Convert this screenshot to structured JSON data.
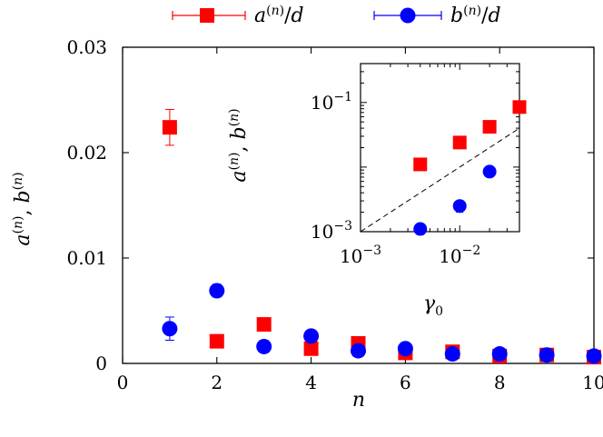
{
  "colors": {
    "series_a": "#ff0000",
    "series_b": "#0000ff",
    "axis": "#000000",
    "fit_line": "#000000"
  },
  "legend": {
    "a_label": "a(n)/d",
    "b_label": "b(n)/d"
  },
  "chart_data": [
    {
      "type": "scatter",
      "title": "",
      "xlabel": "n",
      "ylabel": "a(n), b(n)",
      "xlim": [
        0,
        10
      ],
      "ylim": [
        0,
        0.03
      ],
      "xticks": [
        "0",
        "2",
        "4",
        "6",
        "8",
        "10"
      ],
      "yticks": [
        "0",
        "0.01",
        "0.02",
        "0.03"
      ],
      "grid": false,
      "legend_position": "top",
      "series": [
        {
          "name": "a(n)/d",
          "marker": "square",
          "color": "#ff0000",
          "x": [
            1,
            2,
            3,
            4,
            5,
            6,
            7,
            8,
            9,
            10
          ],
          "y": [
            0.0224,
            0.0021,
            0.0037,
            0.0014,
            0.0019,
            0.001,
            0.0011,
            0.0007,
            0.0008,
            0.0006
          ],
          "err": [
            0.0017,
            0.0004,
            0.0003,
            0.0002,
            0.0002,
            0.0002,
            0.0002,
            0.0002,
            0.0002,
            0.0002
          ]
        },
        {
          "name": "b(n)/d",
          "marker": "circle",
          "color": "#0000ff",
          "x": [
            1,
            2,
            3,
            4,
            5,
            6,
            7,
            8,
            9,
            10
          ],
          "y": [
            0.0033,
            0.0069,
            0.0016,
            0.0026,
            0.0012,
            0.0014,
            0.0009,
            0.0009,
            0.0008,
            0.0007
          ],
          "err": [
            0.0011,
            0.0006,
            0.0002,
            0.0003,
            0.0002,
            0.0002,
            0.0002,
            0.0002,
            0.0002,
            0.0002
          ]
        }
      ]
    },
    {
      "type": "scatter",
      "title": "",
      "xlabel": "γ0",
      "ylabel": "a(n), b(n)",
      "xscale": "log",
      "yscale": "log",
      "xlim": [
        0.001,
        0.04
      ],
      "ylim": [
        0.001,
        0.4
      ],
      "xticks": [
        "10−3",
        "10−2"
      ],
      "yticks": [
        "10−3",
        "10−1"
      ],
      "grid": false,
      "series": [
        {
          "marker": "square",
          "color": "#ff0000",
          "x": [
            0.004,
            0.01,
            0.02,
            0.04
          ],
          "y": [
            0.011,
            0.024,
            0.042,
            0.085
          ]
        },
        {
          "marker": "circle",
          "color": "#0000ff",
          "x": [
            0.004,
            0.01,
            0.02
          ],
          "y": [
            0.0011,
            0.0025,
            0.0085
          ],
          "err": [
            0.0002,
            0.0005,
            0.001
          ]
        },
        {
          "type": "line",
          "style": "dashed",
          "color": "#000000",
          "x": [
            0.001,
            0.04
          ],
          "y": [
            0.001,
            0.04
          ]
        }
      ]
    }
  ]
}
